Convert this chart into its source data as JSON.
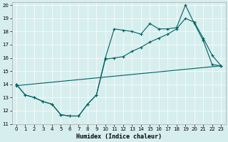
{
  "xlabel": "Humidex (Indice chaleur)",
  "xlim": [
    -0.5,
    23.5
  ],
  "ylim": [
    11,
    20.2
  ],
  "yticks": [
    11,
    12,
    13,
    14,
    15,
    16,
    17,
    18,
    19,
    20
  ],
  "xticks": [
    0,
    1,
    2,
    3,
    4,
    5,
    6,
    7,
    8,
    9,
    10,
    11,
    12,
    13,
    14,
    15,
    16,
    17,
    18,
    19,
    20,
    21,
    22,
    23
  ],
  "bg_color": "#d7eeee",
  "line_color": "#006060",
  "line1_x": [
    0,
    1,
    2,
    3,
    4,
    5,
    6,
    7,
    8,
    9,
    10,
    11,
    12,
    13,
    14,
    15,
    16,
    17,
    18,
    19,
    20,
    21,
    22,
    23
  ],
  "line1_y": [
    14.0,
    13.2,
    13.0,
    12.7,
    12.5,
    11.7,
    11.6,
    11.6,
    12.5,
    13.2,
    16.0,
    18.2,
    18.1,
    18.0,
    17.8,
    18.6,
    18.2,
    18.2,
    18.3,
    20.0,
    18.6,
    17.3,
    15.5,
    15.4
  ],
  "line2_x": [
    0,
    1,
    2,
    3,
    4,
    5,
    6,
    7,
    8,
    9,
    10,
    11,
    12,
    13,
    14,
    15,
    16,
    17,
    18,
    19,
    20,
    21,
    22,
    23
  ],
  "line2_y": [
    14.0,
    13.2,
    13.0,
    12.7,
    12.5,
    11.7,
    11.6,
    11.6,
    12.5,
    13.2,
    15.9,
    16.0,
    16.1,
    16.5,
    16.8,
    17.2,
    17.5,
    17.8,
    18.2,
    19.0,
    18.7,
    17.5,
    16.2,
    15.4
  ],
  "line3_x": [
    0,
    23
  ],
  "line3_y": [
    13.9,
    15.4
  ]
}
